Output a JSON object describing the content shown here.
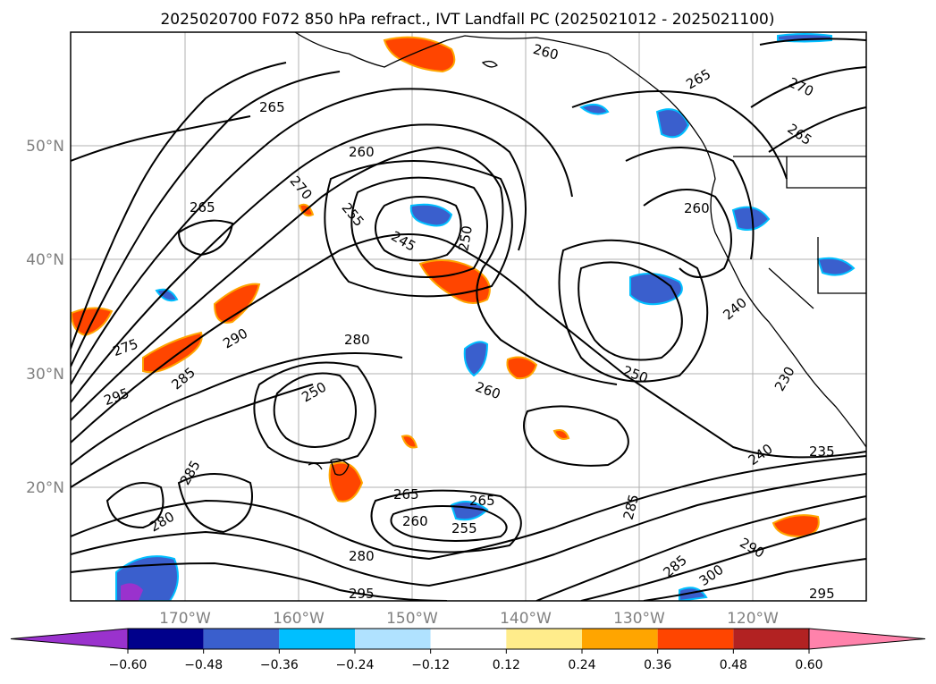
{
  "title": "2025020700 F072 850 hPa refract., IVT Landfall PC (2025021012 - 2025021100)",
  "map": {
    "lat_labels": [
      "50°N",
      "40°N",
      "30°N",
      "20°N"
    ],
    "lon_labels": [
      "170°W",
      "160°W",
      "150°W",
      "140°W",
      "130°W",
      "120°W"
    ],
    "contour_labels": [
      "265",
      "260",
      "270",
      "255",
      "245",
      "250",
      "260",
      "265",
      "270",
      "265",
      "260",
      "265",
      "275",
      "290",
      "295",
      "285",
      "280",
      "250",
      "260",
      "250",
      "240",
      "235",
      "285",
      "280",
      "265",
      "260",
      "255",
      "265",
      "285",
      "300",
      "290",
      "295",
      "295",
      "280",
      "285",
      "230",
      "240"
    ]
  },
  "colorbar": {
    "ticks": [
      "−0.60",
      "−0.48",
      "−0.36",
      "−0.24",
      "−0.12",
      "0.12",
      "0.24",
      "0.36",
      "0.48",
      "0.60"
    ],
    "colors": [
      "#9a32cd",
      "#00008b",
      "#3a5fcd",
      "#00bfff",
      "#b0e2ff",
      "#ffffff",
      "#ffec8b",
      "#ffa500",
      "#ff4500",
      "#b22222",
      "#ff82ab"
    ]
  },
  "palette": {
    "blue_fill": "#3a5fcd",
    "light_blue": "#00bfff",
    "orange": "#ff4500",
    "amber": "#ffa500",
    "dark_red": "#b22222"
  }
}
